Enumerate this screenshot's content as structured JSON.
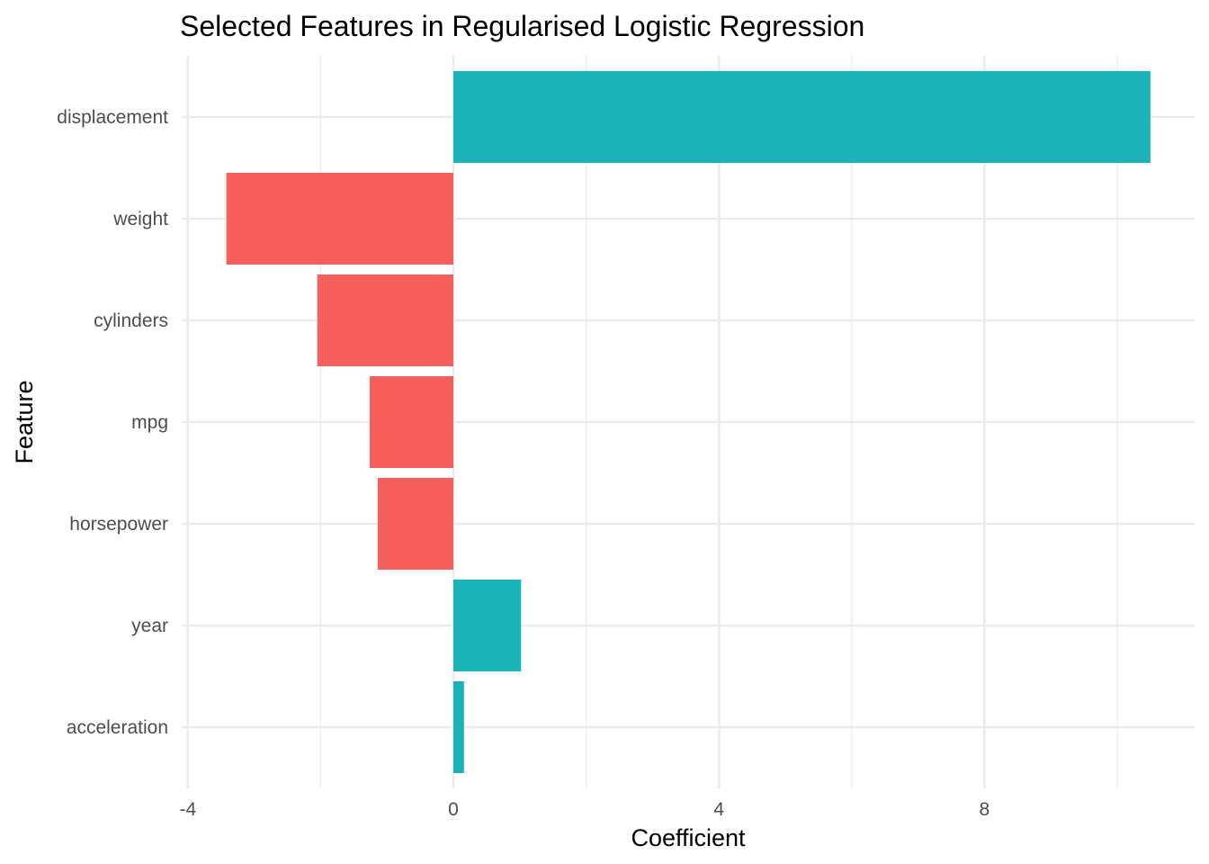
{
  "chart_data": {
    "type": "bar",
    "orientation": "horizontal",
    "title": "Selected Features in Regularised Logistic Regression",
    "xlabel": "Coefficient",
    "ylabel": "Feature",
    "categories": [
      "displacement",
      "weight",
      "cylinders",
      "mpg",
      "horsepower",
      "year",
      "acceleration"
    ],
    "values": [
      10.5,
      -3.42,
      -2.05,
      -1.26,
      -1.14,
      1.02,
      0.16
    ],
    "xlim": [
      -4.4,
      11.4
    ],
    "xticks": [
      -4,
      0,
      4,
      8
    ],
    "xtick_labels": [
      "-4",
      "0",
      "4",
      "8"
    ],
    "grid": true,
    "legend": "none",
    "colors": {
      "positive": "#1ab4b8",
      "negative": "#f5605c"
    }
  }
}
